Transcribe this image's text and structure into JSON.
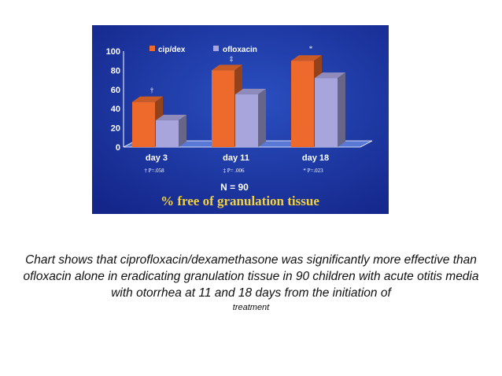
{
  "chart_data": {
    "type": "bar",
    "categories": [
      "day 3",
      "day 11",
      "day 18"
    ],
    "series": [
      {
        "name": "cip/dex",
        "values": [
          47,
          80,
          90
        ],
        "color": "#ee6a2c"
      },
      {
        "name": "ofloxacin",
        "values": [
          28,
          55,
          72
        ],
        "color": "#a8a4dc"
      }
    ],
    "yticks": [
      "100",
      "80",
      "60",
      "40",
      "20",
      "0"
    ],
    "ylim": [
      0,
      100
    ],
    "significance_marks": [
      "†",
      "‡",
      "*"
    ],
    "p_values": [
      "† P=.058",
      "‡ P= .006",
      "* P=.023"
    ],
    "sample_size_label": "N = 90",
    "title": "% free of granulation tissue",
    "legend_position": "top",
    "grid": false,
    "background": "#1e3aa6"
  },
  "caption": {
    "main": "Chart shows that ciprofloxacin/dexamethasone was significantly more effective than ofloxacin alone in eradicating granulation tissue in 90 children with acute otitis media with otorrhea at 11 and 18 days from the initiation of",
    "tail": "treatment"
  }
}
